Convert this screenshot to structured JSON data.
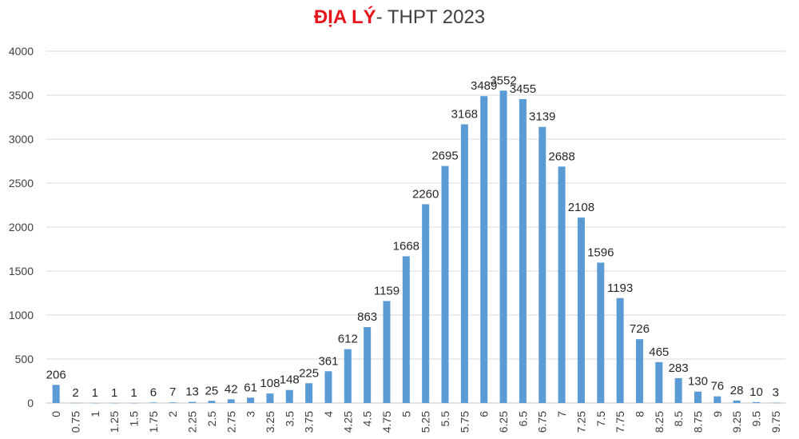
{
  "chart_data": {
    "type": "bar",
    "title_highlight": "ĐỊA LÝ",
    "title_rest": "- THPT 2023",
    "categories": [
      "0",
      "0.75",
      "1",
      "1.25",
      "1.5",
      "1.75",
      "2",
      "2.25",
      "2.5",
      "2.75",
      "3",
      "3.25",
      "3.5",
      "3.75",
      "4",
      "4.25",
      "4.5",
      "4.75",
      "5",
      "5.25",
      "5.5",
      "5.75",
      "6",
      "6.25",
      "6.5",
      "6.75",
      "7",
      "7.25",
      "7.5",
      "7.75",
      "8",
      "8.25",
      "8.5",
      "8.75",
      "9",
      "9.25",
      "9.5",
      "9.75"
    ],
    "values": [
      206,
      2,
      1,
      1,
      1,
      6,
      7,
      13,
      25,
      42,
      61,
      108,
      148,
      225,
      361,
      612,
      863,
      1159,
      1668,
      2260,
      2695,
      3168,
      3489,
      3552,
      3455,
      3139,
      2688,
      2108,
      1596,
      1193,
      726,
      465,
      283,
      130,
      76,
      28,
      10,
      3
    ],
    "ylim": [
      0,
      4000
    ],
    "yticks": [
      0,
      500,
      1000,
      1500,
      2000,
      2500,
      3000,
      3500,
      4000
    ],
    "grid": true,
    "legend": "none",
    "bar_color": "#5b9bd5",
    "title_highlight_color": "#e8141b"
  }
}
